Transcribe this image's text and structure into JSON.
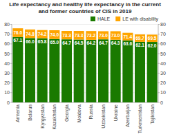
{
  "chart_data": {
    "type": "bar",
    "stacked": true,
    "title": "Life expectancy and healthy life expectancy in the current and former countries of CIS in 2019",
    "categories": [
      "Armenia",
      "Belarus",
      "Kyrgyzstan",
      "Kazakhstan",
      "Georgia",
      "Moldova",
      "Russia",
      "Uzbekistan",
      "Ukraine",
      "Azerbaijan",
      "Turkmenistan",
      "Tajikistan"
    ],
    "series": [
      {
        "name": "HALE",
        "color": "#1a7a00",
        "values": [
          67.1,
          66.0,
          65.8,
          65.0,
          64.7,
          64.5,
          64.2,
          64.7,
          64.3,
          63.6,
          62.1,
          62.0
        ],
        "value_labels": [
          "67.1",
          "66.0",
          "65.8",
          "65.0",
          "64.7",
          "64.5",
          "64.2",
          "64.7",
          "64.3",
          "63.6",
          "62.1",
          "62.0"
        ]
      },
      {
        "name": "LE with disability",
        "color": "#FFA500",
        "values": [
          8.9,
          8.8,
          8.4,
          9.0,
          8.6,
          8.8,
          9.0,
          8.3,
          8.7,
          7.8,
          7.6,
          7.5
        ],
        "totals": [
          76.0,
          74.8,
          74.2,
          74.0,
          73.3,
          73.3,
          73.2,
          73.0,
          73.0,
          71.4,
          69.7,
          69.5
        ],
        "total_labels": [
          "76.0",
          "74.8",
          "74.2",
          "74.0",
          "73.3",
          "73.3",
          "73.2",
          "73.0",
          "73.0",
          "71.4",
          "69.7",
          "69.5"
        ]
      }
    ],
    "ylim": [
      0,
      80
    ],
    "yticks": [
      0,
      10,
      20,
      30,
      40,
      50,
      60,
      70,
      80
    ],
    "y2lim": [
      0,
      80
    ],
    "y2ticks": [
      0,
      10,
      20,
      30,
      40,
      50,
      60,
      70,
      80
    ],
    "grid": true,
    "legend": "upper right",
    "data_labels": true
  }
}
